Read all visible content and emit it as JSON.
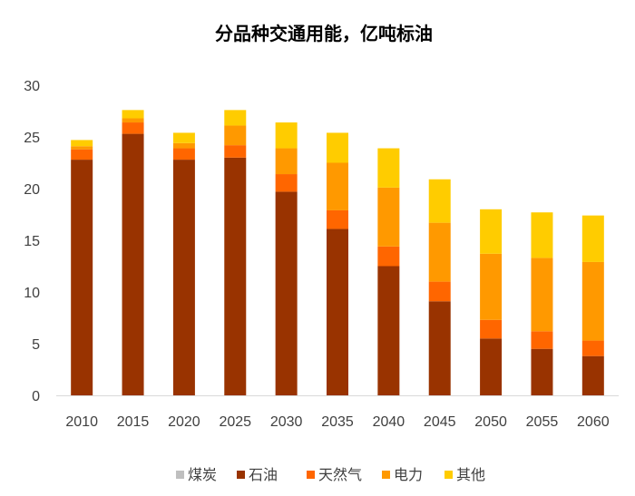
{
  "chart_data": {
    "type": "bar",
    "stacked": true,
    "title": "分品种交通用能，亿吨标油",
    "xlabel": "",
    "ylabel": "",
    "ylim": [
      0,
      30
    ],
    "yticks": [
      0,
      5,
      10,
      15,
      20,
      25,
      30
    ],
    "grid": false,
    "legend_position": "bottom",
    "categories": [
      "2010",
      "2015",
      "2020",
      "2025",
      "2030",
      "2035",
      "2040",
      "2045",
      "2050",
      "2055",
      "2060"
    ],
    "series": [
      {
        "name": "煤炭",
        "color": "#bfbfbf",
        "values": [
          0,
          0,
          0,
          0,
          0,
          0,
          0,
          0,
          0,
          0,
          0
        ]
      },
      {
        "name": "石油",
        "color": "#993300",
        "values": [
          22.8,
          25.3,
          22.8,
          23.0,
          19.7,
          16.1,
          12.5,
          9.1,
          5.5,
          4.5,
          3.8
        ]
      },
      {
        "name": "天然气",
        "color": "#ff6600",
        "values": [
          1.0,
          1.1,
          1.1,
          1.2,
          1.7,
          1.8,
          1.9,
          1.9,
          1.8,
          1.7,
          1.5
        ]
      },
      {
        "name": "电力",
        "color": "#ff9900",
        "values": [
          0.3,
          0.4,
          0.5,
          1.9,
          2.5,
          4.6,
          5.7,
          5.7,
          6.4,
          7.1,
          7.6
        ]
      },
      {
        "name": "其他",
        "color": "#ffcc00",
        "values": [
          0.6,
          0.8,
          1.0,
          1.5,
          2.5,
          2.9,
          3.8,
          4.2,
          4.3,
          4.4,
          4.5
        ]
      }
    ]
  }
}
